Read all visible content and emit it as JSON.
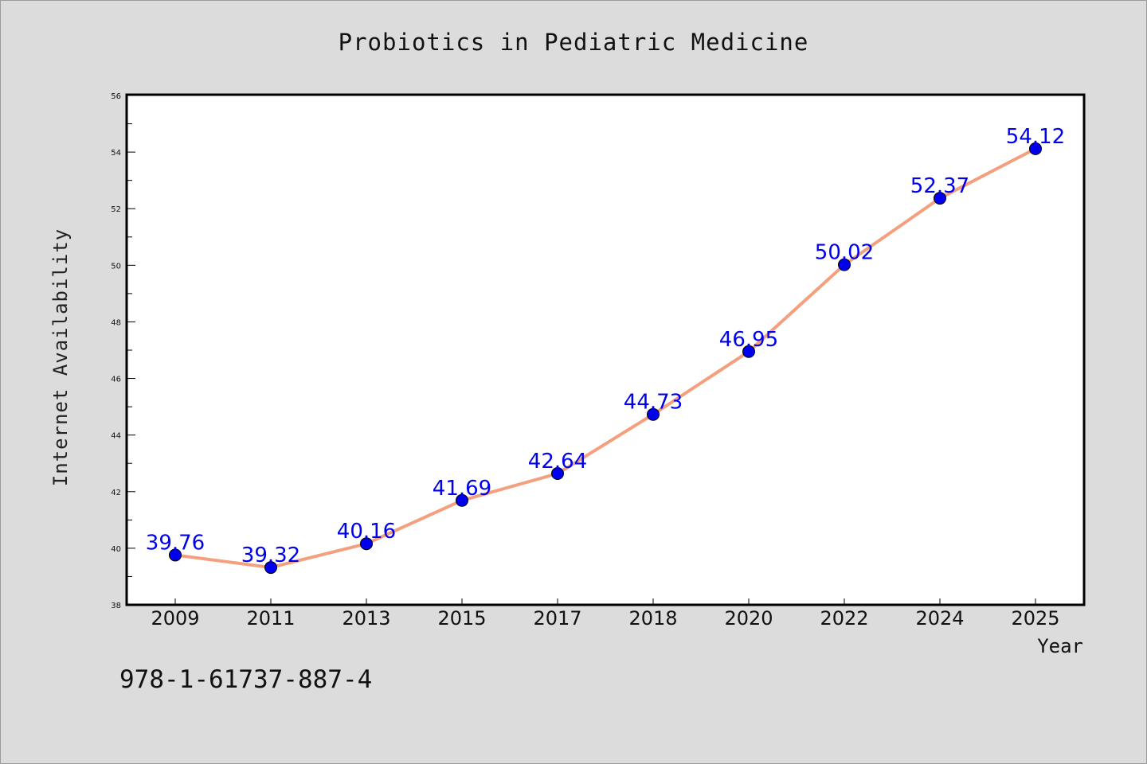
{
  "chart_data": {
    "type": "line",
    "title": "Probiotics in Pediatric Medicine",
    "xlabel": "Year",
    "ylabel": "Internet Availability",
    "categories": [
      "2009",
      "2011",
      "2013",
      "2015",
      "2017",
      "2018",
      "2020",
      "2022",
      "2024",
      "2025"
    ],
    "values": [
      39.76,
      39.32,
      40.16,
      41.69,
      42.64,
      44.73,
      46.95,
      50.02,
      52.37,
      54.12
    ],
    "data_labels": [
      "39.76",
      "39.32",
      "40.16",
      "41.69",
      "42.64",
      "44.73",
      "46.95",
      "50.02",
      "52.37",
      "54.12"
    ],
    "ylim": [
      38,
      56
    ],
    "yticks": [
      "38",
      "40",
      "42",
      "44",
      "46",
      "48",
      "50",
      "52",
      "54",
      "56"
    ],
    "grid": false,
    "colors": {
      "line": "#f4a07e",
      "marker": "#0000ee",
      "data_label": "#0000ee",
      "background": "#dcdcdc"
    }
  },
  "annotation": {
    "text": "978-1-61737-887-4"
  }
}
